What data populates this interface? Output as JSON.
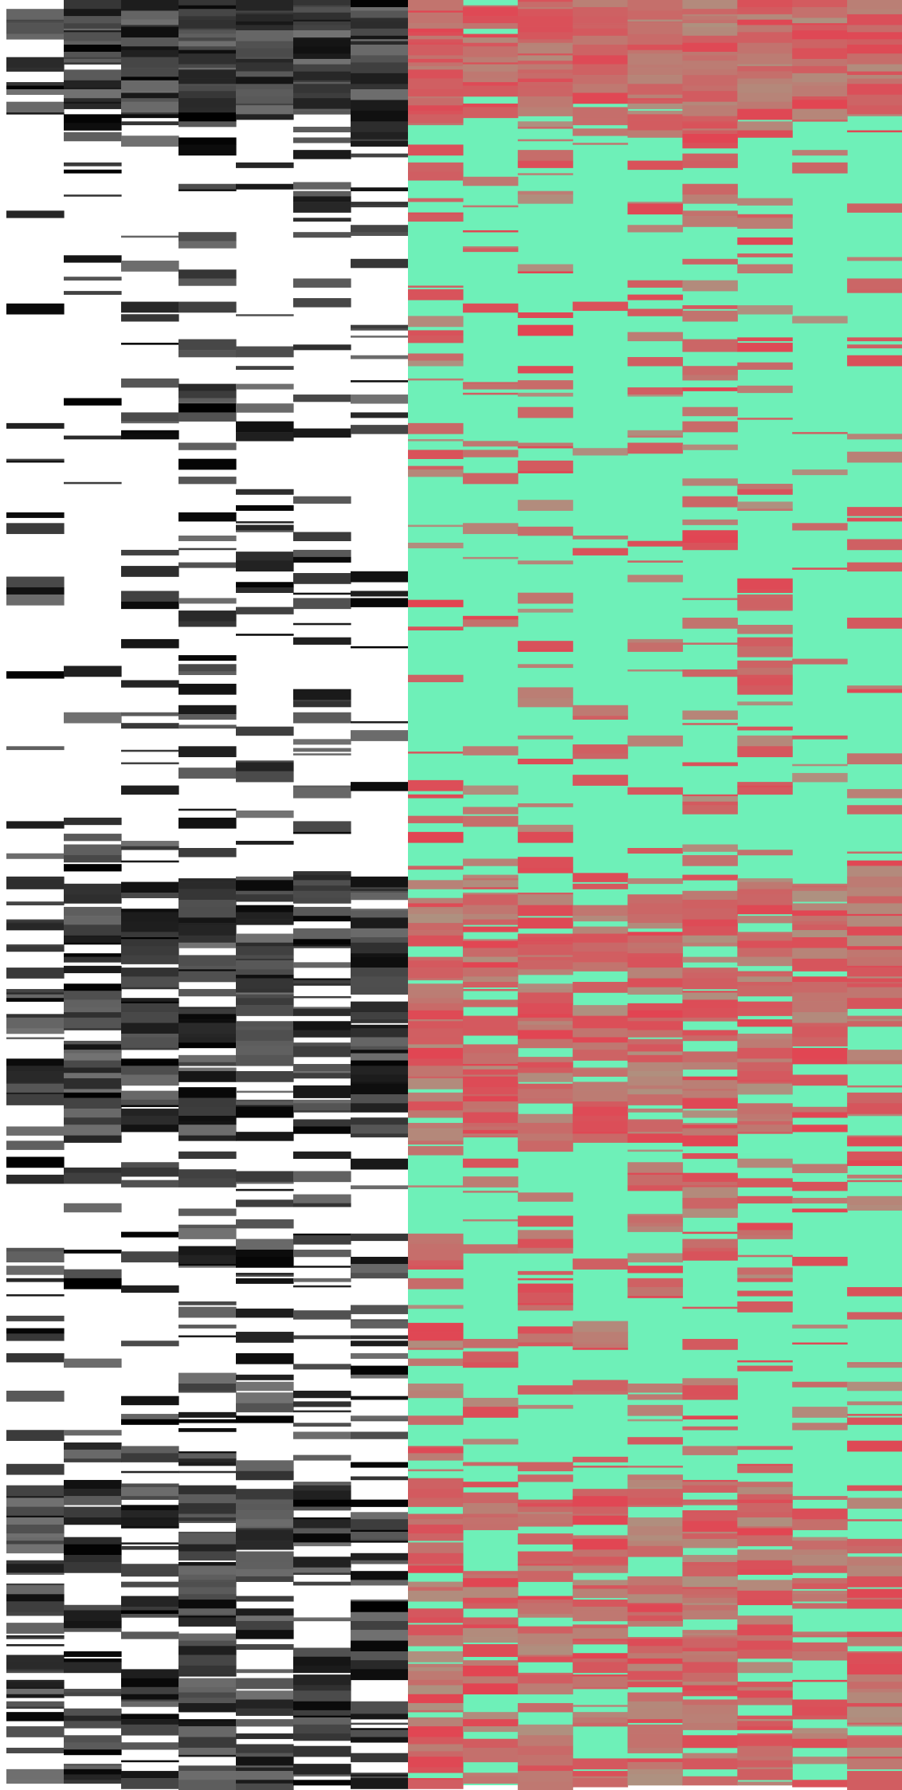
{
  "chart_data": [
    {
      "type": "heatmap",
      "panel": "left",
      "colormap": {
        "low_value": 0,
        "high_value": 1,
        "low_color": "#ffffff",
        "high_color": "#000000"
      },
      "n_columns": 7,
      "rows_estimated": 1000,
      "column_profile": [
        {
          "row_start": 0,
          "row_end": 60,
          "mean_value": 0.95
        },
        {
          "row_start": 60,
          "row_end": 70,
          "mean_value": 0.6
        },
        {
          "row_start": 70,
          "row_end": 490,
          "mean_value": 0.2
        },
        {
          "row_start": 490,
          "row_end": 640,
          "mean_value": 0.75
        },
        {
          "row_start": 640,
          "row_end": 830,
          "mean_value": 0.3
        },
        {
          "row_start": 830,
          "row_end": 1000,
          "mean_value": 0.7
        }
      ],
      "grid": false,
      "legend": "none"
    },
    {
      "type": "heatmap",
      "panel": "right",
      "colormap": {
        "low_value": 0,
        "high_value": 1,
        "low_color": "#6ef0b8",
        "high_color": "#e24452"
      },
      "n_columns": 9,
      "rows_estimated": 1000,
      "column_profile": [
        {
          "row_start": 0,
          "row_end": 60,
          "mean_value": 0.95
        },
        {
          "row_start": 60,
          "row_end": 70,
          "mean_value": 0.6
        },
        {
          "row_start": 70,
          "row_end": 490,
          "mean_value": 0.2
        },
        {
          "row_start": 490,
          "row_end": 640,
          "mean_value": 0.75
        },
        {
          "row_start": 640,
          "row_end": 830,
          "mean_value": 0.3
        },
        {
          "row_start": 830,
          "row_end": 1000,
          "mean_value": 0.7
        }
      ],
      "grid": false,
      "legend": "none"
    }
  ]
}
